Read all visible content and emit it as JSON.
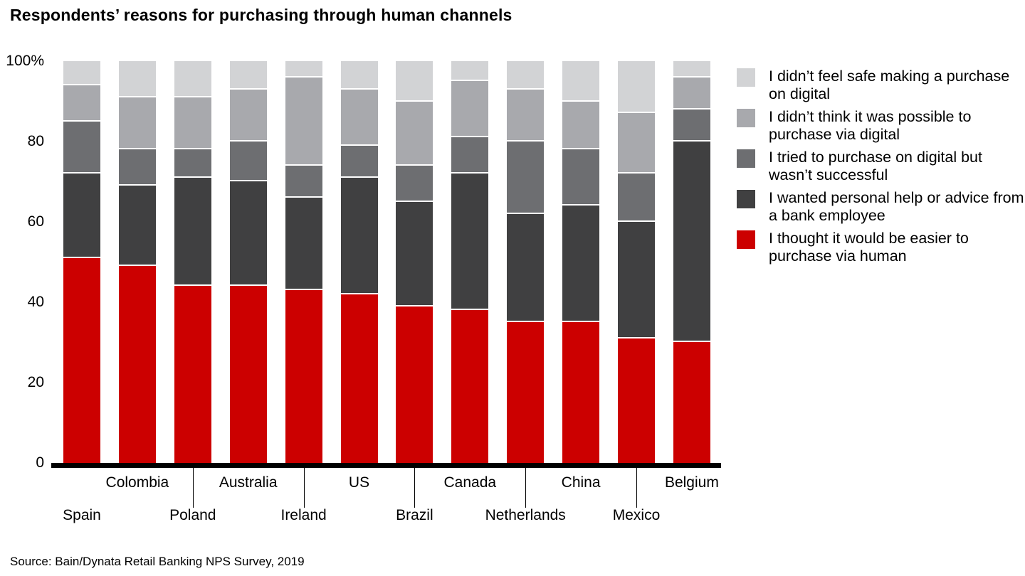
{
  "title": "Respondents’ reasons for purchasing through human channels",
  "source": "Source: Bain/Dynata Retail Banking NPS Survey, 2019",
  "colors": {
    "axis": "#000000",
    "background": "#ffffff",
    "bain_red": "#cc0000"
  },
  "chart_data": {
    "type": "bar",
    "stacked": true,
    "unit": "%",
    "title": "Respondents’ reasons for purchasing through human channels",
    "ylim": [
      0,
      100
    ],
    "grid": false,
    "legend_position": "right",
    "yticks": [
      {
        "value": 100,
        "label": "100%"
      },
      {
        "value": 80,
        "label": "80"
      },
      {
        "value": 60,
        "label": "60"
      },
      {
        "value": 40,
        "label": "40"
      },
      {
        "value": 20,
        "label": "20"
      },
      {
        "value": 0,
        "label": "0"
      }
    ],
    "categories": [
      "Spain",
      "Colombia",
      "Poland",
      "Australia",
      "Ireland",
      "US",
      "Brazil",
      "Canada",
      "Netherlands",
      "China",
      "Mexico",
      "Belgium"
    ],
    "series": [
      {
        "name": "I didn’t feel safe making a purchase on digital",
        "color": "#d2d3d5",
        "values": [
          6,
          9,
          9,
          7,
          4,
          7,
          10,
          5,
          7,
          10,
          13,
          4
        ]
      },
      {
        "name": "I didn’t think it was possible to purchase via digital",
        "color": "#a8a9ad",
        "values": [
          9,
          13,
          13,
          13,
          22,
          14,
          16,
          14,
          13,
          12,
          15,
          8
        ]
      },
      {
        "name": "I tried to purchase on digital but wasn’t successful",
        "color": "#6d6e71",
        "values": [
          13,
          9,
          7,
          10,
          8,
          8,
          9,
          9,
          18,
          14,
          12,
          8
        ]
      },
      {
        "name": "I wanted personal help or advice from a bank employee",
        "color": "#404041",
        "values": [
          21,
          20,
          27,
          26,
          23,
          29,
          26,
          34,
          27,
          29,
          29,
          50
        ]
      },
      {
        "name": "I thought it would be easier to purchase via human",
        "color": "#cc0000",
        "values": [
          51,
          49,
          44,
          44,
          43,
          42,
          39,
          38,
          35,
          35,
          31,
          30
        ]
      }
    ]
  }
}
